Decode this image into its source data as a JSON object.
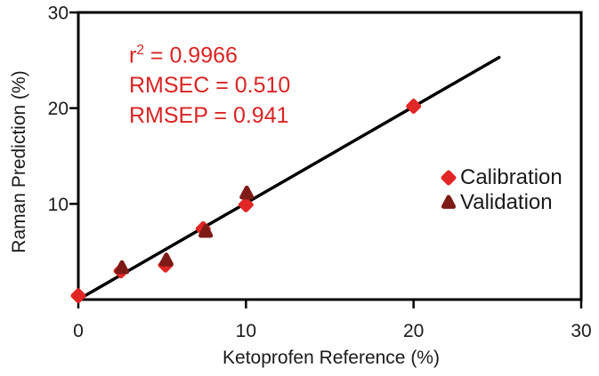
{
  "colors": {
    "calibration_red": "#e12726",
    "validation_dark_red": "#7e1b17",
    "line_black": "#000000",
    "text_black": "#1a1a1a",
    "annotation_red": "#da2423"
  },
  "chart_data": {
    "type": "scatter",
    "xlabel": "Ketoprofen Reference (%)",
    "ylabel": "Raman Prediction (%)",
    "xlim": [
      0,
      30
    ],
    "ylim": [
      0,
      30
    ],
    "x_ticks": [
      0,
      10,
      20,
      30
    ],
    "y_ticks": [
      10,
      20,
      30
    ],
    "grid": false,
    "frame": "box",
    "legend_position": "right-middle",
    "series": [
      {
        "name": "Calibration",
        "marker": "diamond",
        "color": "#e12726",
        "points": [
          [
            0,
            0.4
          ],
          [
            2.55,
            3.0
          ],
          [
            5.2,
            3.6
          ],
          [
            7.45,
            7.4
          ],
          [
            10.0,
            9.9
          ],
          [
            20.0,
            20.2
          ]
        ]
      },
      {
        "name": "Validation",
        "marker": "triangle",
        "color": "#7e1b17",
        "points": [
          [
            2.6,
            3.3
          ],
          [
            5.25,
            4.1
          ],
          [
            7.6,
            7.1
          ],
          [
            10.05,
            11.1
          ]
        ]
      }
    ],
    "fit_line": {
      "x1": 0,
      "y1": 0,
      "x2": 25.1,
      "y2": 25.3,
      "color": "#000000"
    },
    "stats": {
      "r_squared": 0.9966,
      "rmsec": 0.51,
      "rmsep": 0.941
    }
  },
  "annotation": {
    "r2_base": "r",
    "r2_sup": "2",
    "r2_eq": " = 0.9966",
    "rmsec": "RMSEC = 0.510",
    "rmsep": "RMSEP = 0.941"
  }
}
